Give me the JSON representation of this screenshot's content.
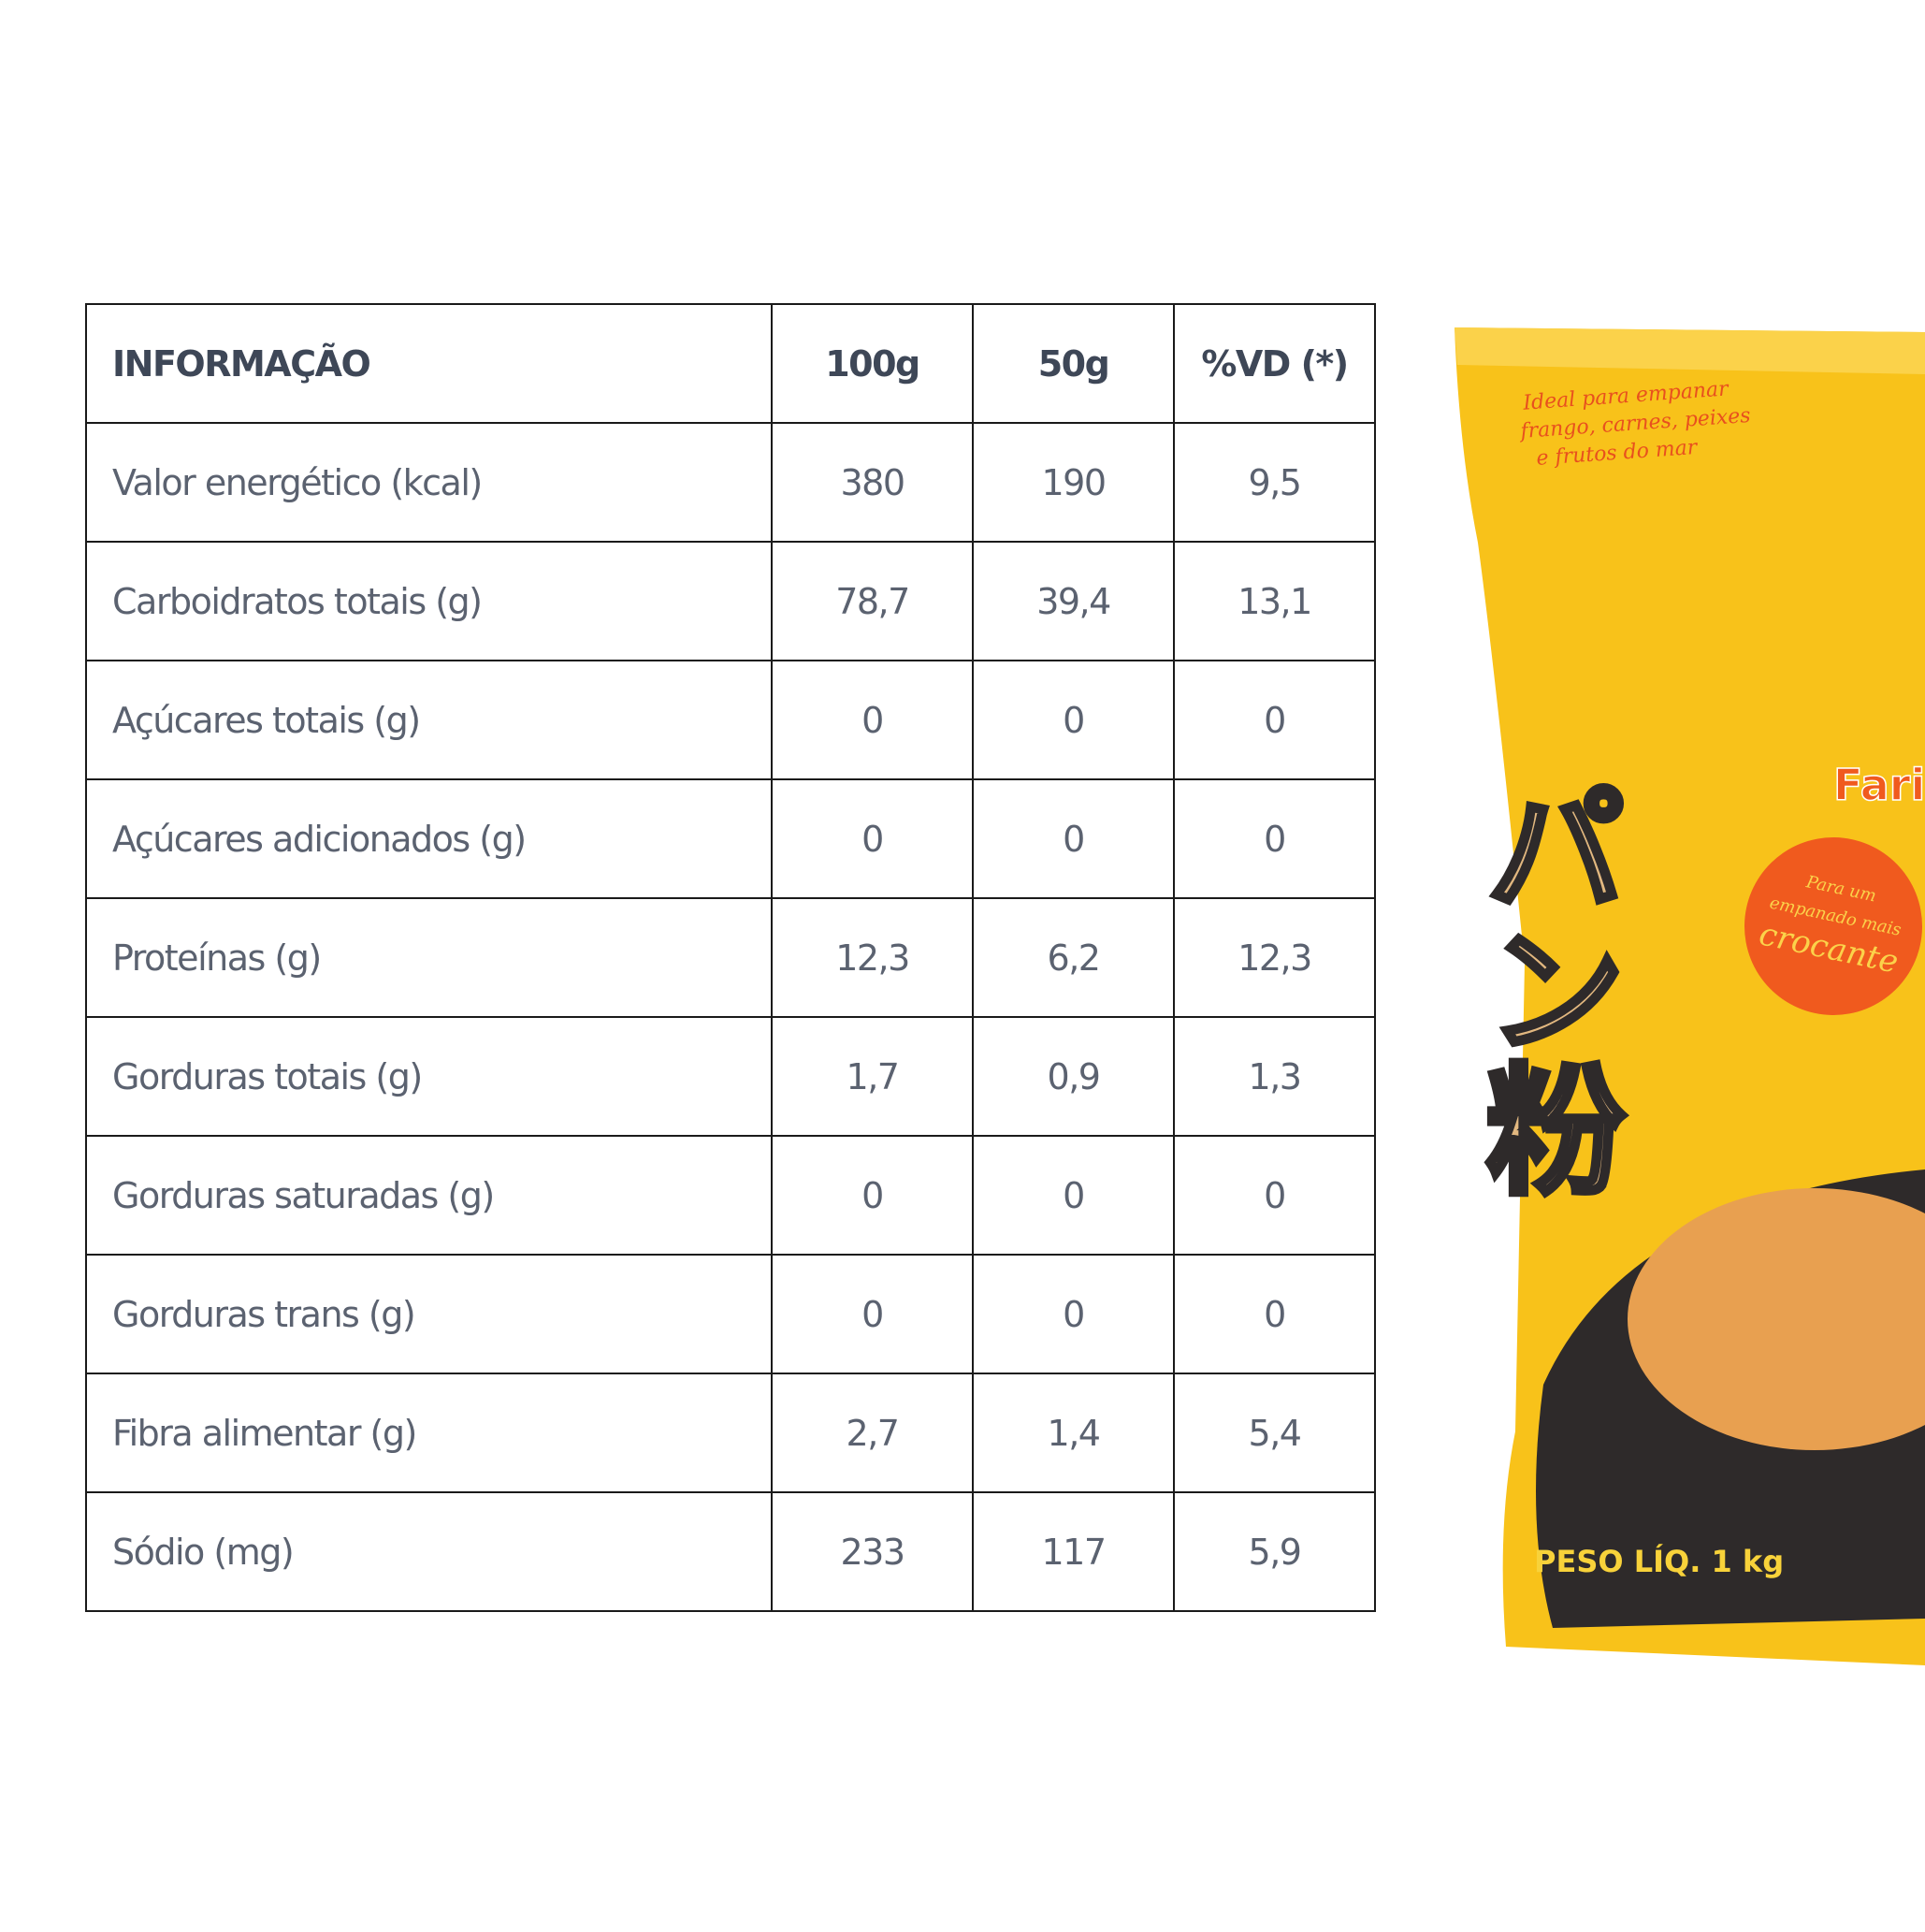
{
  "table": {
    "headers": [
      "INFORMAÇÃO",
      "100g",
      "50g",
      "%VD (*)"
    ],
    "rows": [
      {
        "label": "Valor energético (kcal)",
        "g100": "380",
        "g50": "190",
        "vd": "9,5"
      },
      {
        "label": "Carboidratos totais (g)",
        "g100": "78,7",
        "g50": "39,4",
        "vd": "13,1"
      },
      {
        "label": "Açúcares totais (g)",
        "g100": "0",
        "g50": "0",
        "vd": "0"
      },
      {
        "label": "Açúcares adicionados (g)",
        "g100": "0",
        "g50": "0",
        "vd": "0"
      },
      {
        "label": "Proteínas (g)",
        "g100": "12,3",
        "g50": "6,2",
        "vd": "12,3"
      },
      {
        "label": "Gorduras totais (g)",
        "g100": "1,7",
        "g50": "0,9",
        "vd": "1,3"
      },
      {
        "label": "Gorduras saturadas (g)",
        "g100": "0",
        "g50": "0",
        "vd": "0"
      },
      {
        "label": "Gorduras trans (g)",
        "g100": "0",
        "g50": "0",
        "vd": "0"
      },
      {
        "label": "Fibra alimentar (g)",
        "g100": "2,7",
        "g50": "1,4",
        "vd": "5,4"
      },
      {
        "label": "Sódio (mg)",
        "g100": "233",
        "g50": "117",
        "vd": "5,9"
      }
    ]
  },
  "package": {
    "tagline_lines": [
      "Ideal para empanar",
      "frango, carnes, peixes",
      "e frutos do mar"
    ],
    "japanese_text": "パン粉",
    "brand_partial": "Fari",
    "badge_lines": [
      "Para um",
      "empanado mais",
      "crocante"
    ],
    "net_weight": "PESO LÍQ. 1 kg",
    "colors": {
      "bag": "#f8c21a",
      "accent": "#f05a1e",
      "dark": "#2e2a2a"
    }
  }
}
